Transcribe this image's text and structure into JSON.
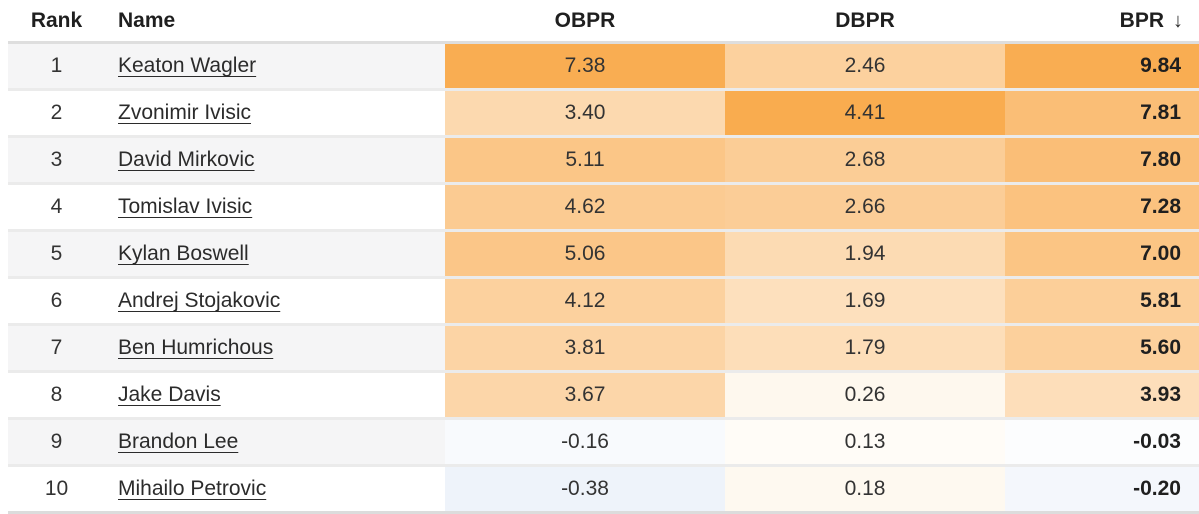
{
  "header": {
    "columns": [
      {
        "id": "rank",
        "label": "Rank"
      },
      {
        "id": "name",
        "label": "Name"
      },
      {
        "id": "obpr",
        "label": "OBPR"
      },
      {
        "id": "dbpr",
        "label": "DBPR"
      },
      {
        "id": "bpr",
        "label": "BPR"
      }
    ],
    "sort": {
      "column": "bpr",
      "direction": "desc",
      "icon": "arrow-down",
      "glyph": "↓"
    }
  },
  "rows": [
    {
      "rank": "1",
      "name": "Keaton Wagler",
      "obpr": "7.38",
      "dbpr": "2.46",
      "bpr": "9.84",
      "obpr_bg": "#F9AD52",
      "dbpr_bg": "#FCD19E",
      "bpr_bg": "#F9AD52"
    },
    {
      "rank": "2",
      "name": "Zvonimir Ivisic",
      "obpr": "3.40",
      "dbpr": "4.41",
      "bpr": "7.81",
      "obpr_bg": "#FCD9AF",
      "dbpr_bg": "#F9AC4F",
      "bpr_bg": "#FABE76"
    },
    {
      "rank": "3",
      "name": "David Mirkovic",
      "obpr": "5.11",
      "dbpr": "2.68",
      "bpr": "7.80",
      "obpr_bg": "#FBC687",
      "dbpr_bg": "#FBCD96",
      "bpr_bg": "#FABE77"
    },
    {
      "rank": "4",
      "name": "Tomislav Ivisic",
      "obpr": "4.62",
      "dbpr": "2.66",
      "bpr": "7.28",
      "obpr_bg": "#FBCB92",
      "dbpr_bg": "#FBCD97",
      "bpr_bg": "#FBC27F"
    },
    {
      "rank": "5",
      "name": "Kylan Boswell",
      "obpr": "5.06",
      "dbpr": "1.94",
      "bpr": "7.00",
      "obpr_bg": "#FBC688",
      "dbpr_bg": "#FCDBB3",
      "bpr_bg": "#FBC584"
    },
    {
      "rank": "6",
      "name": "Andrej Stojakovic",
      "obpr": "4.12",
      "dbpr": "1.69",
      "bpr": "5.81",
      "obpr_bg": "#FCD19E",
      "dbpr_bg": "#FDE0BD",
      "bpr_bg": "#FCCF99"
    },
    {
      "rank": "7",
      "name": "Ben Humrichous",
      "obpr": "3.81",
      "dbpr": "1.79",
      "bpr": "5.60",
      "obpr_bg": "#FCD4A5",
      "dbpr_bg": "#FDDEB9",
      "bpr_bg": "#FCD09C"
    },
    {
      "rank": "8",
      "name": "Jake Davis",
      "obpr": "3.67",
      "dbpr": "0.26",
      "bpr": "3.93",
      "obpr_bg": "#FCD6A9",
      "dbpr_bg": "#FEF8EE",
      "bpr_bg": "#FDDEBA"
    },
    {
      "rank": "9",
      "name": "Brandon Lee",
      "obpr": "-0.16",
      "dbpr": "0.13",
      "bpr": "-0.03",
      "obpr_bg": "#F8FAFD",
      "dbpr_bg": "#FFFCF7",
      "bpr_bg": "#FCFDFE"
    },
    {
      "rank": "10",
      "name": "Mihailo Petrovic",
      "obpr": "-0.38",
      "dbpr": "0.18",
      "bpr": "-0.20",
      "obpr_bg": "#EEF3FA",
      "dbpr_bg": "#FEF9F0",
      "bpr_bg": "#F4F7FC"
    }
  ],
  "colors": {
    "positive_max": "#F9AD52",
    "negative_tint": "#EEF3FA",
    "row_stripe": "#F5F5F6",
    "row_separator": "#EBEBEB",
    "header_border": "#DEDEDE",
    "header_text": "#1F1F1F",
    "cell_text": "#333333"
  }
}
